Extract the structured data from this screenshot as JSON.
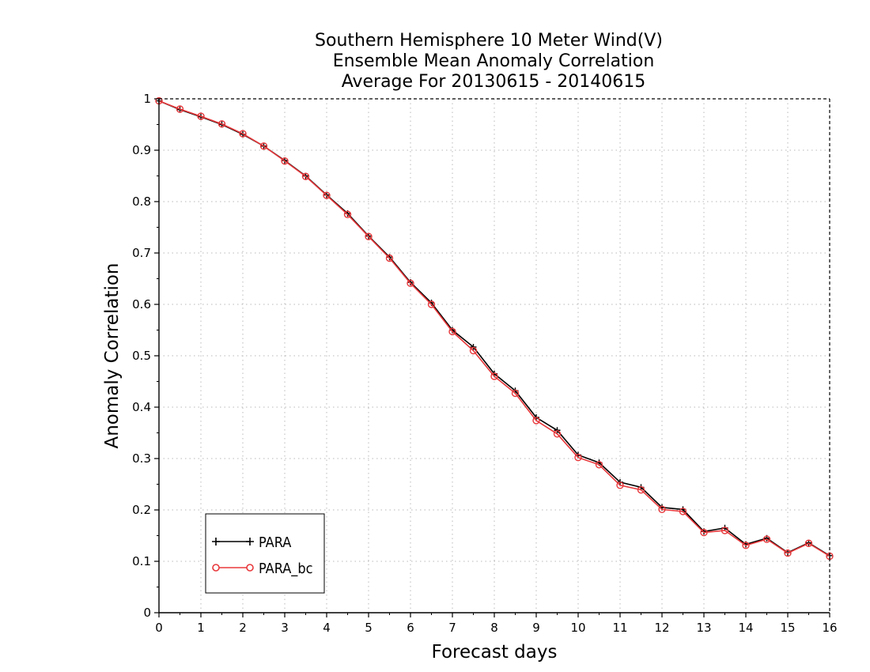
{
  "chart_data": {
    "type": "line",
    "title": [
      "Southern Hemisphere 10 Meter Wind(V)",
      "Ensemble Mean Anomaly Correlation",
      "Average For 20130615 - 20140615"
    ],
    "xlabel": "Forecast days",
    "ylabel": "Anomaly Correlation",
    "xlim": [
      0,
      16
    ],
    "ylim": [
      0,
      1
    ],
    "xticks": [
      0,
      1,
      2,
      3,
      4,
      5,
      6,
      7,
      8,
      9,
      10,
      11,
      12,
      13,
      14,
      15,
      16
    ],
    "xtick_labels": [
      "0",
      "1",
      "2",
      "3",
      "4",
      "5",
      "6",
      "7",
      "8",
      "9",
      "10",
      "11",
      "12",
      "13",
      "14",
      "15",
      "16"
    ],
    "yticks": [
      0,
      0.1,
      0.2,
      0.3,
      0.4,
      0.5,
      0.6,
      0.7,
      0.8,
      0.9,
      1
    ],
    "ytick_labels": [
      "0",
      "0.1",
      "0.2",
      "0.3",
      "0.4",
      "0.5",
      "0.6",
      "0.7",
      "0.8",
      "0.9",
      "1"
    ],
    "grid": true,
    "legend_position": "bottom-left",
    "x": [
      0,
      0.5,
      1,
      1.5,
      2,
      2.5,
      3,
      3.5,
      4,
      4.5,
      5,
      5.5,
      6,
      6.5,
      7,
      7.5,
      8,
      8.5,
      9,
      9.5,
      10,
      10.5,
      11,
      11.5,
      12,
      12.5,
      13,
      13.5,
      14,
      14.5,
      15,
      15.5,
      16
    ],
    "series": [
      {
        "name": "PARA",
        "color": "#000000",
        "marker": "plus",
        "values": [
          0.996,
          0.979,
          0.965,
          0.95,
          0.931,
          0.908,
          0.88,
          0.85,
          0.813,
          0.777,
          0.733,
          0.692,
          0.643,
          0.603,
          0.55,
          0.517,
          0.465,
          0.432,
          0.38,
          0.355,
          0.307,
          0.292,
          0.254,
          0.244,
          0.205,
          0.201,
          0.158,
          0.165,
          0.133,
          0.145,
          0.117,
          0.136,
          0.111
        ]
      },
      {
        "name": "PARA_bc",
        "color": "#e8383b",
        "marker": "circle",
        "values": [
          0.996,
          0.98,
          0.966,
          0.951,
          0.932,
          0.908,
          0.879,
          0.849,
          0.812,
          0.775,
          0.732,
          0.69,
          0.641,
          0.6,
          0.547,
          0.51,
          0.46,
          0.427,
          0.374,
          0.348,
          0.302,
          0.288,
          0.248,
          0.239,
          0.201,
          0.197,
          0.156,
          0.16,
          0.131,
          0.143,
          0.116,
          0.135,
          0.11
        ]
      }
    ]
  }
}
